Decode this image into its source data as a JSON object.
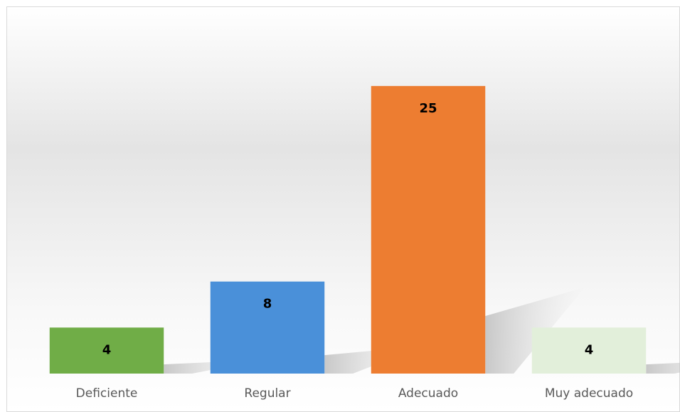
{
  "chart_data": {
    "type": "bar",
    "categories": [
      "Deficiente",
      "Regular",
      "Adecuado",
      "Muy adecuado"
    ],
    "values": [
      4,
      8,
      25,
      4
    ],
    "colors": [
      "#70ad47",
      "#4a90d9",
      "#ed7d31",
      "#e2efda"
    ],
    "ylim": [
      0,
      30
    ]
  }
}
